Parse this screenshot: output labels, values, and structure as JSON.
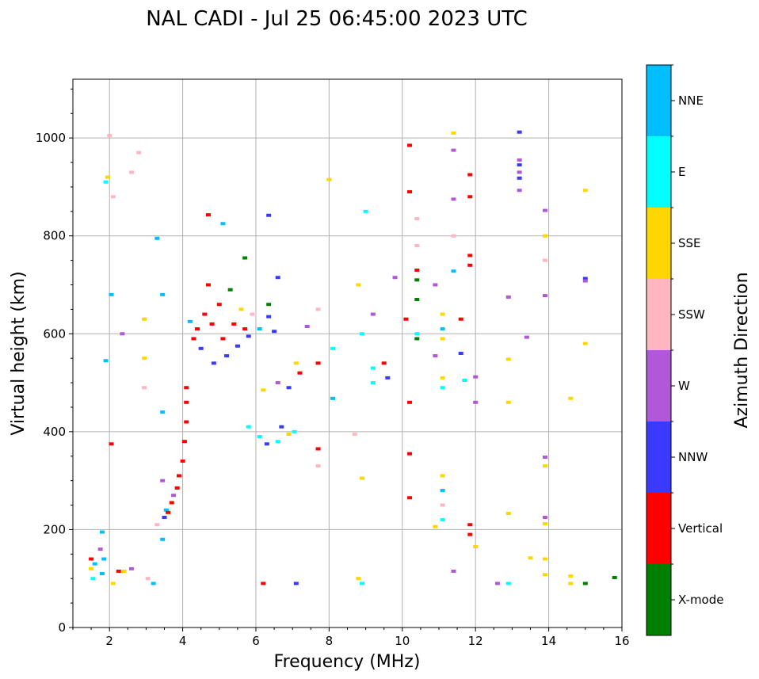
{
  "chart_data": {
    "type": "scatter",
    "title": "NAL CADI - Jul 25 06:45:00 2023 UTC",
    "xlabel": "Frequency (MHz)",
    "ylabel": "Virtual height (km)",
    "xlim": [
      1,
      16
    ],
    "ylim": [
      0,
      1120
    ],
    "xticks": [
      2,
      4,
      6,
      8,
      10,
      12,
      14,
      16
    ],
    "yticks": [
      0,
      200,
      400,
      600,
      800,
      1000
    ],
    "grid": true,
    "colorbar": {
      "label": "Azimuth Direction",
      "categories": [
        {
          "name": "X-mode",
          "color": "#008000"
        },
        {
          "name": "Vertical",
          "color": "#ff0000"
        },
        {
          "name": "NNW",
          "color": "#3a3aff"
        },
        {
          "name": "W",
          "color": "#b058d8"
        },
        {
          "name": "SSW",
          "color": "#ffb6c1"
        },
        {
          "name": "SSE",
          "color": "#ffd700"
        },
        {
          "name": "E",
          "color": "#00ffff"
        },
        {
          "name": "NNE",
          "color": "#00bfff"
        }
      ]
    },
    "points": [
      {
        "f": 1.5,
        "h": 140,
        "c": "Vertical"
      },
      {
        "f": 1.5,
        "h": 120,
        "c": "SSE"
      },
      {
        "f": 1.55,
        "h": 100,
        "c": "E"
      },
      {
        "f": 1.6,
        "h": 130,
        "c": "NNE"
      },
      {
        "f": 1.75,
        "h": 160,
        "c": "W"
      },
      {
        "f": 1.8,
        "h": 110,
        "c": "NNE"
      },
      {
        "f": 1.8,
        "h": 195,
        "c": "NNE"
      },
      {
        "f": 1.85,
        "h": 140,
        "c": "NNE"
      },
      {
        "f": 1.9,
        "h": 545,
        "c": "NNE"
      },
      {
        "f": 1.9,
        "h": 910,
        "c": "E"
      },
      {
        "f": 1.95,
        "h": 920,
        "c": "SSE"
      },
      {
        "f": 2.0,
        "h": 1005,
        "c": "SSW"
      },
      {
        "f": 2.05,
        "h": 680,
        "c": "NNE"
      },
      {
        "f": 2.1,
        "h": 880,
        "c": "SSW"
      },
      {
        "f": 2.05,
        "h": 375,
        "c": "Vertical"
      },
      {
        "f": 2.1,
        "h": 90,
        "c": "SSE"
      },
      {
        "f": 2.25,
        "h": 115,
        "c": "Vertical"
      },
      {
        "f": 2.4,
        "h": 115,
        "c": "SSE"
      },
      {
        "f": 2.6,
        "h": 120,
        "c": "W"
      },
      {
        "f": 2.35,
        "h": 600,
        "c": "W"
      },
      {
        "f": 2.6,
        "h": 930,
        "c": "SSW"
      },
      {
        "f": 2.8,
        "h": 970,
        "c": "SSW"
      },
      {
        "f": 2.95,
        "h": 550,
        "c": "SSE"
      },
      {
        "f": 2.95,
        "h": 490,
        "c": "SSW"
      },
      {
        "f": 2.95,
        "h": 630,
        "c": "SSE"
      },
      {
        "f": 3.05,
        "h": 100,
        "c": "SSW"
      },
      {
        "f": 3.2,
        "h": 90,
        "c": "NNE"
      },
      {
        "f": 3.3,
        "h": 795,
        "c": "NNE"
      },
      {
        "f": 3.3,
        "h": 210,
        "c": "SSW"
      },
      {
        "f": 3.45,
        "h": 440,
        "c": "NNE"
      },
      {
        "f": 3.45,
        "h": 680,
        "c": "NNE"
      },
      {
        "f": 3.45,
        "h": 180,
        "c": "NNE"
      },
      {
        "f": 3.45,
        "h": 300,
        "c": "W"
      },
      {
        "f": 3.5,
        "h": 225,
        "c": "NNW"
      },
      {
        "f": 3.55,
        "h": 240,
        "c": "NNE"
      },
      {
        "f": 3.6,
        "h": 235,
        "c": "Vertical"
      },
      {
        "f": 3.7,
        "h": 255,
        "c": "Vertical"
      },
      {
        "f": 3.75,
        "h": 270,
        "c": "W"
      },
      {
        "f": 3.85,
        "h": 285,
        "c": "Vertical"
      },
      {
        "f": 3.9,
        "h": 310,
        "c": "Vertical"
      },
      {
        "f": 4.0,
        "h": 340,
        "c": "Vertical"
      },
      {
        "f": 4.05,
        "h": 380,
        "c": "Vertical"
      },
      {
        "f": 4.1,
        "h": 420,
        "c": "Vertical"
      },
      {
        "f": 4.1,
        "h": 460,
        "c": "Vertical"
      },
      {
        "f": 4.1,
        "h": 490,
        "c": "Vertical"
      },
      {
        "f": 4.2,
        "h": 625,
        "c": "NNE"
      },
      {
        "f": 4.3,
        "h": 590,
        "c": "Vertical"
      },
      {
        "f": 4.4,
        "h": 610,
        "c": "Vertical"
      },
      {
        "f": 4.5,
        "h": 570,
        "c": "NNW"
      },
      {
        "f": 4.6,
        "h": 640,
        "c": "Vertical"
      },
      {
        "f": 4.7,
        "h": 700,
        "c": "Vertical"
      },
      {
        "f": 4.8,
        "h": 620,
        "c": "Vertical"
      },
      {
        "f": 4.85,
        "h": 540,
        "c": "NNW"
      },
      {
        "f": 5.0,
        "h": 660,
        "c": "Vertical"
      },
      {
        "f": 5.1,
        "h": 590,
        "c": "Vertical"
      },
      {
        "f": 5.2,
        "h": 555,
        "c": "NNW"
      },
      {
        "f": 5.3,
        "h": 690,
        "c": "X-mode"
      },
      {
        "f": 5.4,
        "h": 620,
        "c": "Vertical"
      },
      {
        "f": 5.5,
        "h": 575,
        "c": "NNW"
      },
      {
        "f": 5.6,
        "h": 650,
        "c": "SSE"
      },
      {
        "f": 5.7,
        "h": 610,
        "c": "Vertical"
      },
      {
        "f": 5.8,
        "h": 595,
        "c": "NNW"
      },
      {
        "f": 5.9,
        "h": 640,
        "c": "SSW"
      },
      {
        "f": 4.7,
        "h": 843,
        "c": "Vertical"
      },
      {
        "f": 5.1,
        "h": 825,
        "c": "NNE"
      },
      {
        "f": 5.7,
        "h": 755,
        "c": "X-mode"
      },
      {
        "f": 6.35,
        "h": 842,
        "c": "NNW"
      },
      {
        "f": 6.6,
        "h": 715,
        "c": "NNW"
      },
      {
        "f": 6.35,
        "h": 635,
        "c": "NNW"
      },
      {
        "f": 6.1,
        "h": 610,
        "c": "NNE"
      },
      {
        "f": 6.5,
        "h": 605,
        "c": "NNW"
      },
      {
        "f": 6.35,
        "h": 660,
        "c": "X-mode"
      },
      {
        "f": 5.8,
        "h": 410,
        "c": "E"
      },
      {
        "f": 6.1,
        "h": 390,
        "c": "E"
      },
      {
        "f": 6.3,
        "h": 375,
        "c": "NNW"
      },
      {
        "f": 6.6,
        "h": 380,
        "c": "E"
      },
      {
        "f": 6.7,
        "h": 410,
        "c": "NNW"
      },
      {
        "f": 6.9,
        "h": 395,
        "c": "SSE"
      },
      {
        "f": 7.05,
        "h": 400,
        "c": "E"
      },
      {
        "f": 6.6,
        "h": 500,
        "c": "W"
      },
      {
        "f": 6.9,
        "h": 490,
        "c": "NNW"
      },
      {
        "f": 7.1,
        "h": 540,
        "c": "SSE"
      },
      {
        "f": 7.2,
        "h": 520,
        "c": "Vertical"
      },
      {
        "f": 6.2,
        "h": 485,
        "c": "SSE"
      },
      {
        "f": 7.4,
        "h": 615,
        "c": "W"
      },
      {
        "f": 7.7,
        "h": 650,
        "c": "SSW"
      },
      {
        "f": 7.7,
        "h": 540,
        "c": "Vertical"
      },
      {
        "f": 7.7,
        "h": 365,
        "c": "Vertical"
      },
      {
        "f": 7.7,
        "h": 330,
        "c": "SSW"
      },
      {
        "f": 7.1,
        "h": 90,
        "c": "NNW"
      },
      {
        "f": 6.2,
        "h": 90,
        "c": "Vertical"
      },
      {
        "f": 8.0,
        "h": 915,
        "c": "SSE"
      },
      {
        "f": 8.1,
        "h": 570,
        "c": "E"
      },
      {
        "f": 8.1,
        "h": 468,
        "c": "NNE"
      },
      {
        "f": 8.8,
        "h": 700,
        "c": "SSE"
      },
      {
        "f": 8.9,
        "h": 600,
        "c": "E"
      },
      {
        "f": 9.0,
        "h": 850,
        "c": "E"
      },
      {
        "f": 9.2,
        "h": 640,
        "c": "W"
      },
      {
        "f": 9.2,
        "h": 530,
        "c": "E"
      },
      {
        "f": 9.2,
        "h": 500,
        "c": "E"
      },
      {
        "f": 8.7,
        "h": 395,
        "c": "SSW"
      },
      {
        "f": 8.9,
        "h": 305,
        "c": "SSE"
      },
      {
        "f": 8.8,
        "h": 100,
        "c": "SSE"
      },
      {
        "f": 8.9,
        "h": 90,
        "c": "E"
      },
      {
        "f": 9.5,
        "h": 540,
        "c": "Vertical"
      },
      {
        "f": 9.6,
        "h": 510,
        "c": "NNW"
      },
      {
        "f": 9.8,
        "h": 715,
        "c": "W"
      },
      {
        "f": 10.1,
        "h": 630,
        "c": "Vertical"
      },
      {
        "f": 10.2,
        "h": 985,
        "c": "Vertical"
      },
      {
        "f": 10.2,
        "h": 890,
        "c": "Vertical"
      },
      {
        "f": 10.2,
        "h": 460,
        "c": "Vertical"
      },
      {
        "f": 10.2,
        "h": 355,
        "c": "Vertical"
      },
      {
        "f": 10.2,
        "h": 265,
        "c": "Vertical"
      },
      {
        "f": 10.4,
        "h": 835,
        "c": "SSW"
      },
      {
        "f": 10.4,
        "h": 780,
        "c": "SSW"
      },
      {
        "f": 10.4,
        "h": 730,
        "c": "Vertical"
      },
      {
        "f": 10.4,
        "h": 710,
        "c": "X-mode"
      },
      {
        "f": 10.4,
        "h": 670,
        "c": "X-mode"
      },
      {
        "f": 10.4,
        "h": 600,
        "c": "E"
      },
      {
        "f": 10.4,
        "h": 590,
        "c": "X-mode"
      },
      {
        "f": 10.9,
        "h": 700,
        "c": "W"
      },
      {
        "f": 10.9,
        "h": 555,
        "c": "W"
      },
      {
        "f": 10.9,
        "h": 206,
        "c": "SSE"
      },
      {
        "f": 11.1,
        "h": 640,
        "c": "SSE"
      },
      {
        "f": 11.1,
        "h": 610,
        "c": "NNE"
      },
      {
        "f": 11.1,
        "h": 590,
        "c": "SSE"
      },
      {
        "f": 11.1,
        "h": 510,
        "c": "SSE"
      },
      {
        "f": 11.1,
        "h": 490,
        "c": "E"
      },
      {
        "f": 11.1,
        "h": 310,
        "c": "SSE"
      },
      {
        "f": 11.1,
        "h": 280,
        "c": "NNE"
      },
      {
        "f": 11.1,
        "h": 250,
        "c": "SSW"
      },
      {
        "f": 11.1,
        "h": 220,
        "c": "E"
      },
      {
        "f": 11.4,
        "h": 1010,
        "c": "SSE"
      },
      {
        "f": 11.4,
        "h": 975,
        "c": "W"
      },
      {
        "f": 11.4,
        "h": 875,
        "c": "W"
      },
      {
        "f": 11.4,
        "h": 800,
        "c": "SSW"
      },
      {
        "f": 11.4,
        "h": 728,
        "c": "NNE"
      },
      {
        "f": 11.4,
        "h": 115,
        "c": "W"
      },
      {
        "f": 11.6,
        "h": 630,
        "c": "Vertical"
      },
      {
        "f": 11.6,
        "h": 560,
        "c": "NNW"
      },
      {
        "f": 11.7,
        "h": 505,
        "c": "E"
      },
      {
        "f": 11.85,
        "h": 925,
        "c": "Vertical"
      },
      {
        "f": 11.85,
        "h": 880,
        "c": "Vertical"
      },
      {
        "f": 11.85,
        "h": 760,
        "c": "Vertical"
      },
      {
        "f": 11.85,
        "h": 740,
        "c": "Vertical"
      },
      {
        "f": 11.85,
        "h": 210,
        "c": "Vertical"
      },
      {
        "f": 11.85,
        "h": 190,
        "c": "Vertical"
      },
      {
        "f": 12.0,
        "h": 512,
        "c": "W"
      },
      {
        "f": 12.0,
        "h": 460,
        "c": "W"
      },
      {
        "f": 12.0,
        "h": 165,
        "c": "SSE"
      },
      {
        "f": 12.6,
        "h": 90,
        "c": "W"
      },
      {
        "f": 12.9,
        "h": 90,
        "c": "E"
      },
      {
        "f": 12.9,
        "h": 675,
        "c": "W"
      },
      {
        "f": 12.9,
        "h": 548,
        "c": "SSE"
      },
      {
        "f": 12.9,
        "h": 460,
        "c": "SSE"
      },
      {
        "f": 12.9,
        "h": 233,
        "c": "SSE"
      },
      {
        "f": 13.2,
        "h": 1012,
        "c": "NNW"
      },
      {
        "f": 13.2,
        "h": 955,
        "c": "W"
      },
      {
        "f": 13.2,
        "h": 945,
        "c": "NNW"
      },
      {
        "f": 13.2,
        "h": 930,
        "c": "W"
      },
      {
        "f": 13.2,
        "h": 918,
        "c": "NNW"
      },
      {
        "f": 13.2,
        "h": 893,
        "c": "W"
      },
      {
        "f": 13.4,
        "h": 593,
        "c": "W"
      },
      {
        "f": 13.5,
        "h": 142,
        "c": "SSE"
      },
      {
        "f": 13.9,
        "h": 852,
        "c": "W"
      },
      {
        "f": 13.9,
        "h": 800,
        "c": "SSE"
      },
      {
        "f": 13.9,
        "h": 750,
        "c": "SSW"
      },
      {
        "f": 13.9,
        "h": 678,
        "c": "W"
      },
      {
        "f": 13.9,
        "h": 348,
        "c": "W"
      },
      {
        "f": 13.9,
        "h": 330,
        "c": "SSE"
      },
      {
        "f": 13.9,
        "h": 225,
        "c": "W"
      },
      {
        "f": 13.9,
        "h": 212,
        "c": "SSE"
      },
      {
        "f": 13.9,
        "h": 140,
        "c": "SSE"
      },
      {
        "f": 13.9,
        "h": 108,
        "c": "SSE"
      },
      {
        "f": 14.6,
        "h": 468,
        "c": "SSE"
      },
      {
        "f": 14.6,
        "h": 105,
        "c": "SSE"
      },
      {
        "f": 14.6,
        "h": 90,
        "c": "SSE"
      },
      {
        "f": 15.0,
        "h": 893,
        "c": "SSE"
      },
      {
        "f": 15.0,
        "h": 713,
        "c": "NNW"
      },
      {
        "f": 15.0,
        "h": 708,
        "c": "W"
      },
      {
        "f": 15.0,
        "h": 580,
        "c": "SSE"
      },
      {
        "f": 15.0,
        "h": 90,
        "c": "X-mode"
      },
      {
        "f": 15.8,
        "h": 102,
        "c": "X-mode"
      }
    ]
  }
}
